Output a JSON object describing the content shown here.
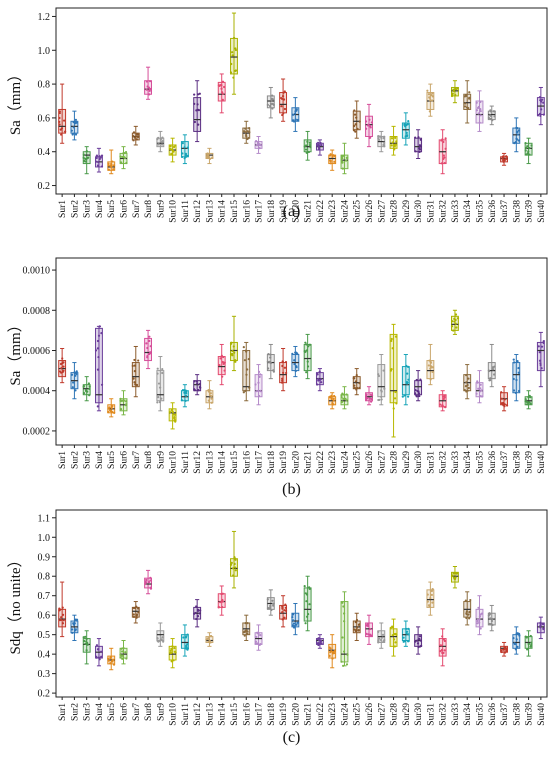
{
  "figure": {
    "colors": [
      "#c0392b",
      "#2e75b6",
      "#4a9a4a",
      "#6a3d9a",
      "#e08a1e",
      "#7ab648",
      "#8b5a2b",
      "#d64f9a",
      "#9a9a9a",
      "#b8b800",
      "#17a4b8",
      "#5a2d82",
      "#c9a66b",
      "#e34a6f",
      "#a8b200",
      "#8b6b3d",
      "#b48ac9",
      "#8c8c8c",
      "#c0392b",
      "#2e75b6",
      "#4a9a4a",
      "#6a3d9a",
      "#e08a1e",
      "#7ab648",
      "#8b5a2b",
      "#d64f9a",
      "#9a9a9a",
      "#b8b800",
      "#17a4b8",
      "#5a2d82",
      "#c9a66b",
      "#e34a6f",
      "#a8b200",
      "#8b6b3d",
      "#b48ac9",
      "#8c8c8c",
      "#c0392b",
      "#2e75b6",
      "#4a9a4a",
      "#6a3d9a"
    ]
  },
  "chart_data": [
    {
      "type": "box",
      "panel_label": "(a)",
      "ylabel": "Sa（mm）",
      "ylim": [
        0.15,
        1.25
      ],
      "yticks": [
        "0.2",
        "0.4",
        "0.6",
        "0.8",
        "1.0",
        "1.2"
      ],
      "ytick_values": [
        0.2,
        0.4,
        0.6,
        0.8,
        1.0,
        1.2
      ],
      "categories": [
        "Sur1",
        "Sur2",
        "Sur3",
        "Sur4",
        "Sur5",
        "Sur6",
        "Sur7",
        "Sur8",
        "Sur9",
        "Sur10",
        "Sur11",
        "Sur12",
        "Sur13",
        "Sur14",
        "Sur15",
        "Sur16",
        "Sur17",
        "Sur18",
        "Sur19",
        "Sur20",
        "Sur21",
        "Sur22",
        "Sur23",
        "Sur24",
        "Sur25",
        "Sur26",
        "Sur27",
        "Sur28",
        "Sur29",
        "Sur30",
        "Sur31",
        "Sur32",
        "Sur33",
        "Sur34",
        "Sur35",
        "Sur36",
        "Sur37",
        "Sur38",
        "Sur39",
        "Sur40"
      ],
      "boxes": [
        [
          0.45,
          0.51,
          0.55,
          0.65,
          0.8
        ],
        [
          0.47,
          0.51,
          0.55,
          0.58,
          0.64
        ],
        [
          0.27,
          0.33,
          0.38,
          0.4,
          0.43
        ],
        [
          0.28,
          0.31,
          0.34,
          0.37,
          0.42
        ],
        [
          0.27,
          0.29,
          0.31,
          0.34,
          0.41
        ],
        [
          0.3,
          0.33,
          0.36,
          0.39,
          0.43
        ],
        [
          0.44,
          0.47,
          0.49,
          0.51,
          0.55
        ],
        [
          0.71,
          0.74,
          0.77,
          0.82,
          0.9
        ],
        [
          0.4,
          0.43,
          0.45,
          0.48,
          0.52
        ],
        [
          0.34,
          0.38,
          0.41,
          0.44,
          0.48
        ],
        [
          0.33,
          0.37,
          0.42,
          0.46,
          0.5
        ],
        [
          0.46,
          0.52,
          0.59,
          0.72,
          0.82
        ],
        [
          0.33,
          0.36,
          0.38,
          0.39,
          0.42
        ],
        [
          0.63,
          0.7,
          0.74,
          0.81,
          0.86
        ],
        [
          0.74,
          0.86,
          0.96,
          1.07,
          1.22
        ],
        [
          0.45,
          0.48,
          0.51,
          0.54,
          0.58
        ],
        [
          0.39,
          0.42,
          0.44,
          0.46,
          0.49
        ],
        [
          0.6,
          0.66,
          0.7,
          0.73,
          0.78
        ],
        [
          0.58,
          0.63,
          0.68,
          0.75,
          0.83
        ],
        [
          0.52,
          0.58,
          0.62,
          0.66,
          0.72
        ],
        [
          0.35,
          0.4,
          0.43,
          0.47,
          0.52
        ],
        [
          0.38,
          0.41,
          0.43,
          0.45,
          0.47
        ],
        [
          0.29,
          0.33,
          0.36,
          0.38,
          0.41
        ],
        [
          0.27,
          0.3,
          0.35,
          0.38,
          0.45
        ],
        [
          0.48,
          0.53,
          0.58,
          0.64,
          0.7
        ],
        [
          0.43,
          0.49,
          0.56,
          0.61,
          0.68
        ],
        [
          0.4,
          0.43,
          0.46,
          0.49,
          0.52
        ],
        [
          0.38,
          0.42,
          0.45,
          0.49,
          0.55
        ],
        [
          0.44,
          0.48,
          0.53,
          0.57,
          0.63
        ],
        [
          0.36,
          0.4,
          0.43,
          0.48,
          0.53
        ],
        [
          0.61,
          0.65,
          0.7,
          0.75,
          0.8
        ],
        [
          0.27,
          0.33,
          0.4,
          0.47,
          0.53
        ],
        [
          0.69,
          0.73,
          0.76,
          0.78,
          0.82
        ],
        [
          0.57,
          0.65,
          0.69,
          0.74,
          0.82
        ],
        [
          0.52,
          0.57,
          0.62,
          0.7,
          0.76
        ],
        [
          0.56,
          0.59,
          0.62,
          0.64,
          0.67
        ],
        [
          0.32,
          0.34,
          0.36,
          0.37,
          0.39
        ],
        [
          0.4,
          0.45,
          0.5,
          0.54,
          0.6
        ],
        [
          0.33,
          0.38,
          0.42,
          0.45,
          0.48
        ],
        [
          0.56,
          0.62,
          0.67,
          0.72,
          0.78
        ]
      ]
    },
    {
      "type": "box",
      "panel_label": "(b)",
      "ylabel": "Sa（mm）",
      "ylim": [
        0.00013,
        0.00106
      ],
      "yticks": [
        "0.0002",
        "0.0004",
        "0.0006",
        "0.0008",
        "0.0010"
      ],
      "ytick_values": [
        0.0002,
        0.0004,
        0.0006,
        0.0008,
        0.001
      ],
      "categories": [
        "Sur1",
        "Sur2",
        "Sur3",
        "Sur4",
        "Sur5",
        "Sur6",
        "Sur7",
        "Sur8",
        "Sur9",
        "Sur10",
        "Sur11",
        "Sur12",
        "Sur13",
        "Sur14",
        "Sur15",
        "Sur16",
        "Sur17",
        "Sur18",
        "Sur19",
        "Sur20",
        "Sur21",
        "Sur22",
        "Sur23",
        "Sur24",
        "Sur25",
        "Sur26",
        "Sur27",
        "Sur28",
        "Sur29",
        "Sur30",
        "Sur31",
        "Sur32",
        "Sur33",
        "Sur34",
        "Sur35",
        "Sur36",
        "Sur37",
        "Sur38",
        "Sur39",
        "Sur40"
      ],
      "boxes": [
        [
          0.00044,
          0.00047,
          0.00051,
          0.00055,
          0.00061
        ],
        [
          0.00036,
          0.00041,
          0.00045,
          0.00049,
          0.00054
        ],
        [
          0.00035,
          0.00038,
          0.00041,
          0.00043,
          0.00047
        ],
        [
          0.0003,
          0.00034,
          0.00038,
          0.00071,
          0.00072
        ],
        [
          0.00027,
          0.00029,
          0.00031,
          0.00033,
          0.00036
        ],
        [
          0.00028,
          0.0003,
          0.00033,
          0.00036,
          0.0004
        ],
        [
          0.00037,
          0.00042,
          0.00047,
          0.00054,
          0.00062
        ],
        [
          0.00051,
          0.00055,
          0.00059,
          0.00066,
          0.0007
        ],
        [
          0.0003,
          0.00035,
          0.00038,
          0.0005,
          0.00057
        ],
        [
          0.00021,
          0.00025,
          0.00029,
          0.00031,
          0.00034
        ],
        [
          0.00032,
          0.00035,
          0.00037,
          0.0004,
          0.00043
        ],
        [
          0.00038,
          0.0004,
          0.00043,
          0.00045,
          0.00048
        ],
        [
          0.00031,
          0.00034,
          0.00037,
          0.0004,
          0.00045
        ],
        [
          0.00043,
          0.00048,
          0.00052,
          0.00057,
          0.00063
        ],
        [
          0.0005,
          0.00055,
          0.0006,
          0.00064,
          0.00077
        ],
        [
          0.00035,
          0.0004,
          0.00042,
          0.0006,
          0.00064
        ],
        [
          0.00033,
          0.00037,
          0.0004,
          0.00048,
          0.00053
        ],
        [
          0.00046,
          0.0005,
          0.00054,
          0.00058,
          0.00063
        ],
        [
          0.0004,
          0.00044,
          0.00048,
          0.00054,
          0.00061
        ],
        [
          0.00047,
          0.0005,
          0.00054,
          0.00058,
          0.00062
        ],
        [
          0.00046,
          0.0005,
          0.00056,
          0.00063,
          0.00068
        ],
        [
          0.0004,
          0.00043,
          0.00046,
          0.00049,
          0.00051
        ],
        [
          0.00031,
          0.00033,
          0.00035,
          0.00037,
          0.00039
        ],
        [
          0.00031,
          0.00033,
          0.00035,
          0.00038,
          0.00042
        ],
        [
          0.00038,
          0.00041,
          0.00044,
          0.00047,
          0.00051
        ],
        [
          0.00033,
          0.00035,
          0.00037,
          0.00039,
          0.00042
        ],
        [
          0.00033,
          0.00037,
          0.00042,
          0.00053,
          0.00058
        ],
        [
          0.00017,
          0.00034,
          0.0004,
          0.00068,
          0.00073
        ],
        [
          0.00033,
          0.00038,
          0.00043,
          0.00052,
          0.00058
        ],
        [
          0.00035,
          0.00038,
          0.00042,
          0.00045,
          0.0005
        ],
        [
          0.00043,
          0.00046,
          0.0005,
          0.00055,
          0.00063
        ],
        [
          0.0003,
          0.00032,
          0.00035,
          0.00038,
          0.0004
        ],
        [
          0.00068,
          0.0007,
          0.00073,
          0.00077,
          0.0008
        ],
        [
          0.00036,
          0.0004,
          0.00044,
          0.00048,
          0.00053
        ],
        [
          0.00034,
          0.00037,
          0.0004,
          0.00044,
          0.0005
        ],
        [
          0.00042,
          0.00046,
          0.0005,
          0.00054,
          0.00063
        ],
        [
          0.0003,
          0.00033,
          0.00036,
          0.00039,
          0.00042
        ],
        [
          0.00035,
          0.00039,
          0.00048,
          0.00054,
          0.00058
        ],
        [
          0.00031,
          0.00033,
          0.00035,
          0.00037,
          0.0004
        ],
        [
          0.00042,
          0.0005,
          0.0006,
          0.00064,
          0.00069
        ]
      ]
    },
    {
      "type": "box",
      "panel_label": "(c)",
      "ylabel": "Sdq（no unite）",
      "ylim": [
        0.18,
        1.14
      ],
      "yticks": [
        "0.2",
        "0.3",
        "0.4",
        "0.5",
        "0.6",
        "0.7",
        "0.8",
        "0.9",
        "1.0",
        "1.1"
      ],
      "ytick_values": [
        0.2,
        0.3,
        0.4,
        0.5,
        0.6,
        0.7,
        0.8,
        0.9,
        1.0,
        1.1
      ],
      "categories": [
        "Sur1",
        "Sur2",
        "Sur3",
        "Sur4",
        "Sur5",
        "Sur6",
        "Sur7",
        "Sur8",
        "Sur9",
        "Sur10",
        "Sur11",
        "Sur12",
        "Sur13",
        "Sur14",
        "Sur15",
        "Sur16",
        "Sur17",
        "Sur18",
        "Sur19",
        "Sur20",
        "Sur21",
        "Sur22",
        "Sur23",
        "Sur24",
        "Sur25",
        "Sur26",
        "Sur27",
        "Sur28",
        "Sur29",
        "Sur30",
        "Sur31",
        "Sur32",
        "Sur33",
        "Sur34",
        "Sur35",
        "Sur36",
        "Sur37",
        "Sur38",
        "Sur39",
        "Sur40"
      ],
      "boxes": [
        [
          0.49,
          0.54,
          0.58,
          0.63,
          0.77
        ],
        [
          0.47,
          0.51,
          0.54,
          0.57,
          0.6
        ],
        [
          0.35,
          0.41,
          0.45,
          0.48,
          0.52
        ],
        [
          0.34,
          0.38,
          0.41,
          0.44,
          0.48
        ],
        [
          0.32,
          0.35,
          0.37,
          0.39,
          0.43
        ],
        [
          0.35,
          0.38,
          0.4,
          0.43,
          0.47
        ],
        [
          0.56,
          0.59,
          0.62,
          0.64,
          0.67
        ],
        [
          0.71,
          0.74,
          0.76,
          0.79,
          0.83
        ],
        [
          0.44,
          0.47,
          0.5,
          0.52,
          0.56
        ],
        [
          0.33,
          0.37,
          0.4,
          0.44,
          0.48
        ],
        [
          0.39,
          0.43,
          0.46,
          0.5,
          0.55
        ],
        [
          0.54,
          0.58,
          0.61,
          0.64,
          0.68
        ],
        [
          0.44,
          0.46,
          0.47,
          0.49,
          0.51
        ],
        [
          0.6,
          0.64,
          0.67,
          0.71,
          0.75
        ],
        [
          0.74,
          0.8,
          0.84,
          0.89,
          1.03
        ],
        [
          0.47,
          0.5,
          0.53,
          0.56,
          0.6
        ],
        [
          0.42,
          0.45,
          0.48,
          0.51,
          0.55
        ],
        [
          0.6,
          0.63,
          0.66,
          0.69,
          0.73
        ],
        [
          0.54,
          0.58,
          0.61,
          0.65,
          0.7
        ],
        [
          0.5,
          0.54,
          0.57,
          0.61,
          0.66
        ],
        [
          0.52,
          0.57,
          0.63,
          0.74,
          0.8
        ],
        [
          0.43,
          0.45,
          0.47,
          0.48,
          0.5
        ],
        [
          0.33,
          0.38,
          0.42,
          0.45,
          0.5
        ],
        [
          0.34,
          0.36,
          0.4,
          0.67,
          0.72
        ],
        [
          0.47,
          0.51,
          0.54,
          0.57,
          0.61
        ],
        [
          0.45,
          0.49,
          0.53,
          0.56,
          0.6
        ],
        [
          0.43,
          0.46,
          0.49,
          0.52,
          0.56
        ],
        [
          0.39,
          0.44,
          0.49,
          0.53,
          0.58
        ],
        [
          0.44,
          0.47,
          0.5,
          0.53,
          0.57
        ],
        [
          0.4,
          0.44,
          0.47,
          0.5,
          0.54
        ],
        [
          0.6,
          0.64,
          0.68,
          0.73,
          0.77
        ],
        [
          0.34,
          0.39,
          0.44,
          0.48,
          0.53
        ],
        [
          0.74,
          0.77,
          0.8,
          0.82,
          0.85
        ],
        [
          0.55,
          0.59,
          0.63,
          0.67,
          0.72
        ],
        [
          0.5,
          0.54,
          0.58,
          0.63,
          0.7
        ],
        [
          0.52,
          0.55,
          0.58,
          0.61,
          0.65
        ],
        [
          0.39,
          0.41,
          0.43,
          0.44,
          0.46
        ],
        [
          0.4,
          0.43,
          0.46,
          0.5,
          0.54
        ],
        [
          0.39,
          0.43,
          0.46,
          0.49,
          0.52
        ],
        [
          0.48,
          0.51,
          0.54,
          0.56,
          0.59
        ]
      ]
    }
  ]
}
